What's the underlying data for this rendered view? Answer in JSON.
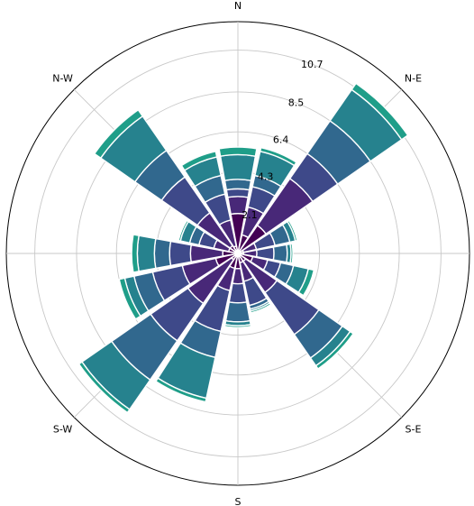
{
  "chart_data": {
    "type": "windrose",
    "direction_labels": [
      "N",
      "N-E",
      "S-E",
      "S",
      "S-W",
      "N-W"
    ],
    "radial_ticks": [
      "2.1",
      "4.3",
      "6.4",
      "8.5",
      "10.7"
    ],
    "radial_max": 12.2,
    "grid": true,
    "bin_colors": [
      "#440154",
      "#482878",
      "#3e4989",
      "#31688e",
      "#26828e",
      "#1f9e89"
    ],
    "directions": [
      {
        "angle": 0.0,
        "stack": [
          2.1,
          3.0,
          3.4,
          3.9,
          5.2,
          5.6
        ]
      },
      {
        "angle": 22.5,
        "stack": [
          1.0,
          2.5,
          3.6,
          4.2,
          5.5,
          5.7
        ]
      },
      {
        "angle": 45.0,
        "stack": [
          1.8,
          4.8,
          6.4,
          8.5,
          10.5,
          10.9
        ]
      },
      {
        "angle": 67.5,
        "stack": [
          0.3,
          1.0,
          2.0,
          2.8,
          3.1,
          3.2
        ]
      },
      {
        "angle": 90.0,
        "stack": [
          0.3,
          1.0,
          1.9,
          2.6,
          2.8,
          2.9
        ]
      },
      {
        "angle": 112.5,
        "stack": [
          0.8,
          1.6,
          2.3,
          3.0,
          3.8,
          4.1
        ]
      },
      {
        "angle": 135.0,
        "stack": [
          0.5,
          2.5,
          5.2,
          6.7,
          7.2,
          7.4
        ]
      },
      {
        "angle": 157.5,
        "stack": [
          0.5,
          1.5,
          2.8,
          3.0,
          3.1,
          3.2
        ]
      },
      {
        "angle": 180.0,
        "stack": [
          0.8,
          1.6,
          2.6,
          3.6,
          3.8,
          3.9
        ]
      },
      {
        "angle": 202.5,
        "stack": [
          0.8,
          2.0,
          4.2,
          5.6,
          7.8,
          8.0
        ]
      },
      {
        "angle": 225.0,
        "stack": [
          0.4,
          3.2,
          5.6,
          8.1,
          10.0,
          10.2
        ]
      },
      {
        "angle": 247.5,
        "stack": [
          1.2,
          3.0,
          4.6,
          5.6,
          6.1,
          6.4
        ]
      },
      {
        "angle": 270.0,
        "stack": [
          0.8,
          2.5,
          3.6,
          4.4,
          5.3,
          5.6
        ]
      },
      {
        "angle": 292.5,
        "stack": [
          0.5,
          1.3,
          2.1,
          2.6,
          3.1,
          3.2
        ]
      },
      {
        "angle": 315.0,
        "stack": [
          0.5,
          2.6,
          4.9,
          6.6,
          8.8,
          9.2
        ]
      },
      {
        "angle": 337.5,
        "stack": [
          0.4,
          1.8,
          3.2,
          4.2,
          5.2,
          5.5
        ]
      }
    ]
  }
}
